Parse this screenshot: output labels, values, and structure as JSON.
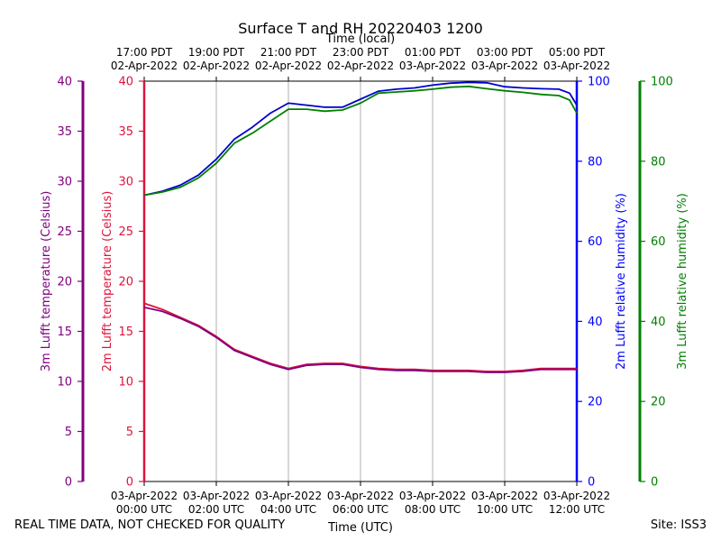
{
  "chart_data": {
    "type": "line",
    "title": "Surface T and RH 20220403 1200",
    "x_axis_top": {
      "label": "Time (local)",
      "ticks": [
        [
          "17:00 PDT",
          "02-Apr-2022"
        ],
        [
          "19:00 PDT",
          "02-Apr-2022"
        ],
        [
          "21:00 PDT",
          "02-Apr-2022"
        ],
        [
          "23:00 PDT",
          "02-Apr-2022"
        ],
        [
          "01:00 PDT",
          "03-Apr-2022"
        ],
        [
          "03:00 PDT",
          "03-Apr-2022"
        ],
        [
          "05:00 PDT",
          "03-Apr-2022"
        ]
      ]
    },
    "x_axis_bottom": {
      "label": "Time (UTC)",
      "ticks": [
        [
          "03-Apr-2022",
          "00:00 UTC"
        ],
        [
          "03-Apr-2022",
          "02:00 UTC"
        ],
        [
          "03-Apr-2022",
          "04:00 UTC"
        ],
        [
          "03-Apr-2022",
          "06:00 UTC"
        ],
        [
          "03-Apr-2022",
          "08:00 UTC"
        ],
        [
          "03-Apr-2022",
          "10:00 UTC"
        ],
        [
          "03-Apr-2022",
          "12:00 UTC"
        ]
      ]
    },
    "xlim_hours_utc": [
      0,
      12
    ],
    "grid": "vertical",
    "axes": {
      "temp_3m": {
        "label": "3m Lufft temperature (Celsius)",
        "color": "#800080",
        "ylim": [
          0,
          40
        ],
        "ticks": [
          0,
          5,
          10,
          15,
          20,
          25,
          30,
          35,
          40
        ]
      },
      "temp_2m": {
        "label": "2m Lufft temperature (Celsius)",
        "color": "#dc143c",
        "ylim": [
          0,
          40
        ],
        "ticks": [
          0,
          5,
          10,
          15,
          20,
          25,
          30,
          35,
          40
        ]
      },
      "rh_2m": {
        "label": "2m Lufft relative humidity (%)",
        "color": "#0000ff",
        "ylim": [
          0,
          100
        ],
        "ticks": [
          0,
          20,
          40,
          60,
          80,
          100
        ]
      },
      "rh_3m": {
        "label": "3m Lufft relative humidity (%)",
        "color": "#008000",
        "ylim": [
          0,
          100
        ],
        "ticks": [
          0,
          20,
          40,
          60,
          80,
          100
        ]
      }
    },
    "series": [
      {
        "axis": "rh_2m",
        "color": "#0000cc",
        "x": [
          0.0,
          0.5,
          1.0,
          1.5,
          2.0,
          2.5,
          3.0,
          3.5,
          4.0,
          4.5,
          5.0,
          5.5,
          6.0,
          6.5,
          7.0,
          7.5,
          8.0,
          8.5,
          9.0,
          9.5,
          10.0,
          10.5,
          11.0,
          11.5,
          11.8,
          12.0
        ],
        "y": [
          71.5,
          72.5,
          74.0,
          76.5,
          80.5,
          85.5,
          88.5,
          92.0,
          94.5,
          94.0,
          93.5,
          93.5,
          95.5,
          97.5,
          98.0,
          98.3,
          99.0,
          99.5,
          99.7,
          99.6,
          98.6,
          98.3,
          98.1,
          98.0,
          97.0,
          94.0
        ]
      },
      {
        "axis": "rh_3m",
        "color": "#008000",
        "x": [
          0.0,
          0.5,
          1.0,
          1.5,
          2.0,
          2.5,
          3.0,
          3.5,
          4.0,
          4.5,
          5.0,
          5.5,
          6.0,
          6.5,
          7.0,
          7.5,
          8.0,
          8.5,
          9.0,
          9.5,
          10.0,
          10.5,
          11.0,
          11.5,
          11.8,
          12.0
        ],
        "y": [
          71.5,
          72.3,
          73.5,
          75.8,
          79.5,
          84.5,
          87.0,
          90.0,
          93.0,
          93.0,
          92.5,
          92.8,
          94.5,
          97.0,
          97.3,
          97.6,
          98.0,
          98.5,
          98.7,
          98.1,
          97.6,
          97.2,
          96.7,
          96.4,
          95.3,
          92.0
        ]
      },
      {
        "axis": "temp_2m",
        "color": "#dc143c",
        "x": [
          0.0,
          0.5,
          1.0,
          1.5,
          2.0,
          2.5,
          3.0,
          3.5,
          4.0,
          4.5,
          5.0,
          5.5,
          6.0,
          6.5,
          7.0,
          7.5,
          8.0,
          8.5,
          9.0,
          9.5,
          10.0,
          10.5,
          11.0,
          11.5,
          12.0
        ],
        "y": [
          17.8,
          17.2,
          16.4,
          15.6,
          14.5,
          13.2,
          12.5,
          11.8,
          11.3,
          11.7,
          11.8,
          11.8,
          11.5,
          11.3,
          11.2,
          11.2,
          11.1,
          11.1,
          11.1,
          11.0,
          11.0,
          11.1,
          11.3,
          11.3,
          11.3
        ]
      },
      {
        "axis": "temp_3m",
        "color": "#800080",
        "x": [
          0.0,
          0.5,
          1.0,
          1.5,
          2.0,
          2.5,
          3.0,
          3.5,
          4.0,
          4.5,
          5.0,
          5.5,
          6.0,
          6.5,
          7.0,
          7.5,
          8.0,
          8.5,
          9.0,
          9.5,
          10.0,
          10.5,
          11.0,
          11.5,
          12.0
        ],
        "y": [
          17.4,
          17.0,
          16.3,
          15.5,
          14.4,
          13.1,
          12.4,
          11.7,
          11.2,
          11.6,
          11.7,
          11.7,
          11.4,
          11.2,
          11.1,
          11.1,
          11.0,
          11.0,
          11.0,
          10.9,
          10.9,
          11.0,
          11.2,
          11.2,
          11.2
        ]
      }
    ]
  },
  "footer": {
    "left": "REAL TIME DATA, NOT CHECKED FOR QUALITY",
    "right": "Site: ISS3"
  }
}
